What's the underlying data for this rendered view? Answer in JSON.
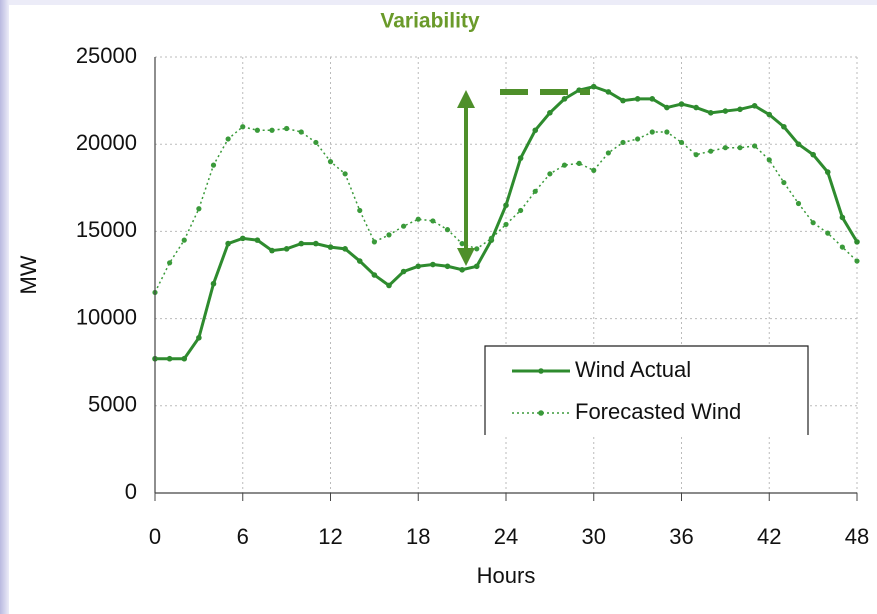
{
  "chart_data": {
    "type": "line",
    "title": "Variability",
    "x_label": "Hours",
    "y_label": "MW",
    "x": [
      0,
      1,
      2,
      3,
      4,
      5,
      6,
      7,
      8,
      9,
      10,
      11,
      12,
      13,
      14,
      15,
      16,
      17,
      18,
      19,
      20,
      21,
      22,
      23,
      24,
      25,
      26,
      27,
      28,
      29,
      30,
      31,
      32,
      33,
      34,
      35,
      36,
      37,
      38,
      39,
      40,
      41,
      42,
      43,
      44,
      45,
      46,
      47,
      48
    ],
    "series": [
      {
        "name": "Wind Actual",
        "color": "#2e8b2e",
        "style": "solid",
        "values": [
          7700,
          7700,
          7700,
          8900,
          12000,
          14300,
          14600,
          14500,
          13900,
          14000,
          14300,
          14300,
          14100,
          14000,
          13300,
          12500,
          11900,
          12700,
          13000,
          13100,
          13000,
          12800,
          13000,
          14500,
          16500,
          19200,
          20800,
          21800,
          22600,
          23100,
          23300,
          23000,
          22500,
          22600,
          22600,
          22100,
          22300,
          22100,
          21800,
          21900,
          22000,
          22200,
          21700,
          21000,
          20000,
          19400,
          18400,
          15800,
          14400
        ]
      },
      {
        "name": "Forecasted Wind",
        "color": "#3a9a3a",
        "style": "dotted",
        "values": [
          11500,
          13200,
          14500,
          16300,
          18800,
          20300,
          21000,
          20800,
          20800,
          20900,
          20700,
          20100,
          19000,
          18300,
          16200,
          14400,
          14800,
          15300,
          15700,
          15600,
          15100,
          14300,
          14000,
          14600,
          15400,
          16200,
          17300,
          18300,
          18800,
          18900,
          18500,
          19500,
          20100,
          20300,
          20700,
          20700,
          20100,
          19400,
          19600,
          19800,
          19800,
          19900,
          19100,
          17800,
          16600,
          15500,
          14900,
          14100,
          13300
        ]
      }
    ],
    "xlim": [
      0,
      48
    ],
    "xticks": [
      0,
      6,
      12,
      18,
      24,
      30,
      36,
      42,
      48
    ],
    "ylim": [
      0,
      25000
    ],
    "yticks": [
      0,
      5000,
      10000,
      15000,
      20000,
      25000
    ],
    "grid": true
  }
}
